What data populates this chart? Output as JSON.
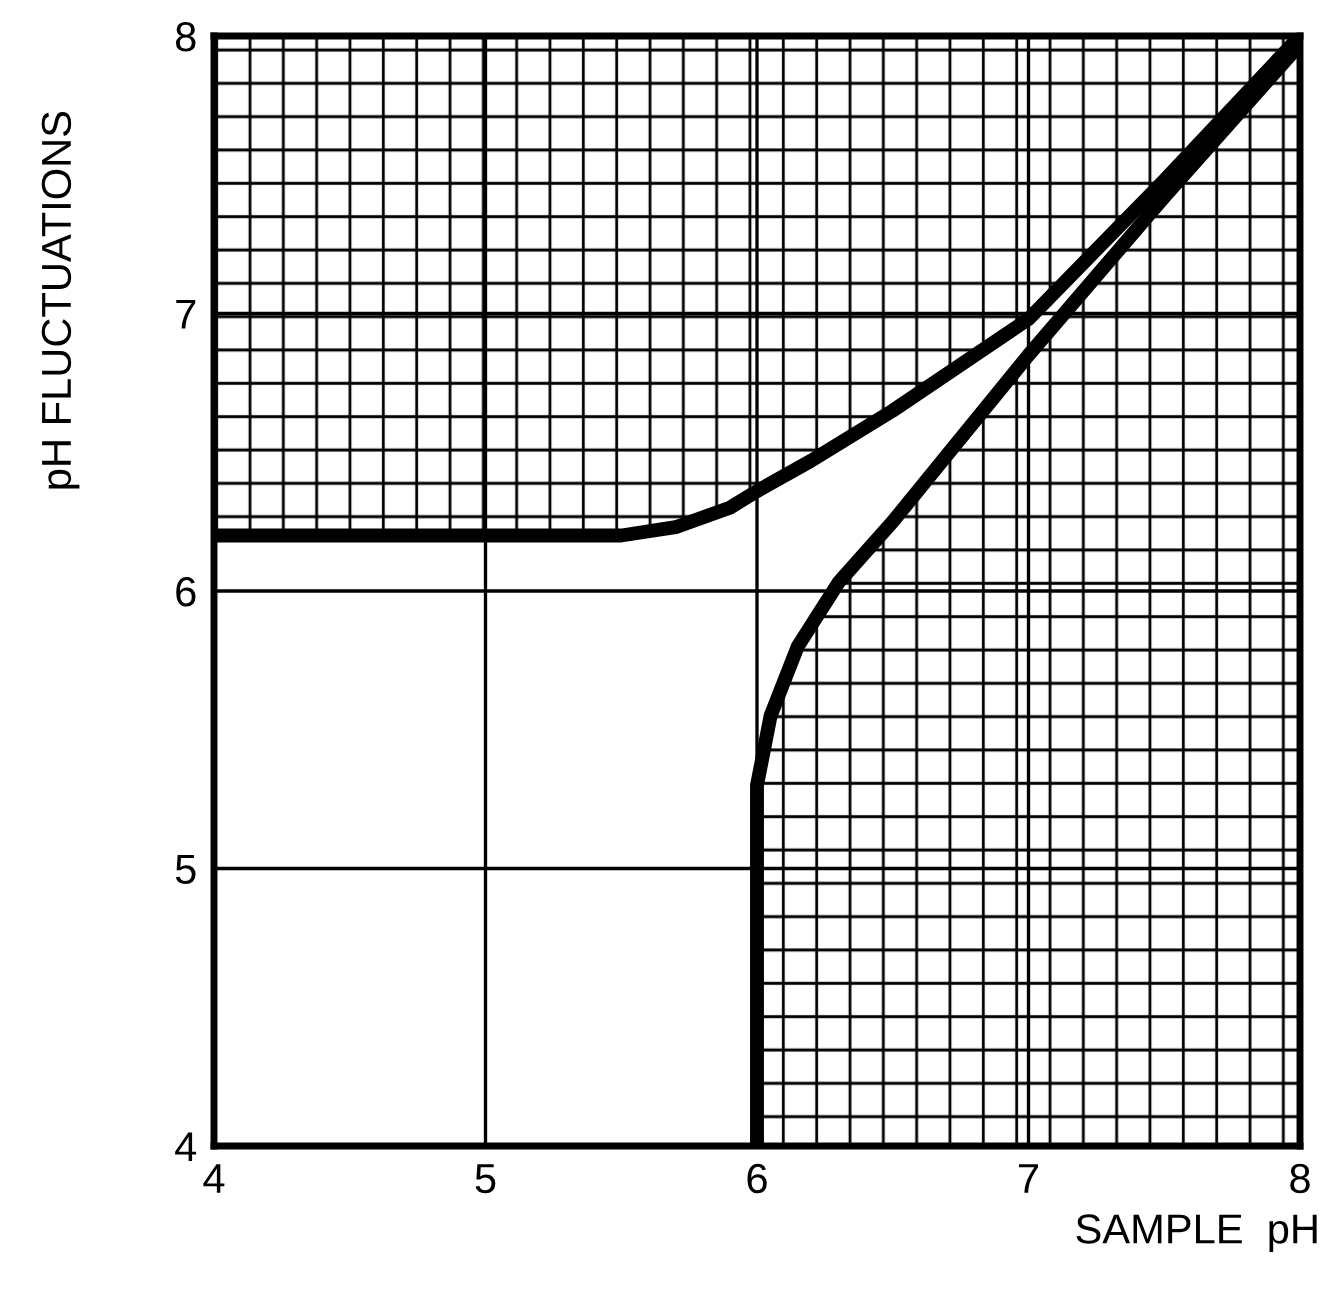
{
  "chart_data": {
    "type": "line",
    "xlabel": "SAMPLE  pH",
    "ylabel": "pH FLUCTUATIONS",
    "xlim": [
      4,
      8
    ],
    "ylim": [
      4,
      8
    ],
    "xticks": [
      4,
      5,
      6,
      7,
      8
    ],
    "yticks": [
      4,
      5,
      6,
      7,
      8
    ],
    "grid": true,
    "line_style": "solid",
    "marker": "none",
    "series": [
      {
        "color": "#000000",
        "x": [
          4,
          5.5,
          5.7,
          5.9,
          6.0,
          6.2,
          6.5,
          7,
          7.5,
          8
        ],
        "values": [
          6.2,
          6.2,
          6.23,
          6.3,
          6.36,
          6.47,
          6.65,
          6.98,
          7.48,
          8
        ]
      },
      {
        "color": "#000000",
        "x": [
          6,
          6,
          6.05,
          6.15,
          6.3,
          6.5,
          7,
          7.5,
          8
        ],
        "values": [
          4,
          5.3,
          5.55,
          5.8,
          6.03,
          6.25,
          6.85,
          7.42,
          7.97
        ]
      }
    ]
  }
}
